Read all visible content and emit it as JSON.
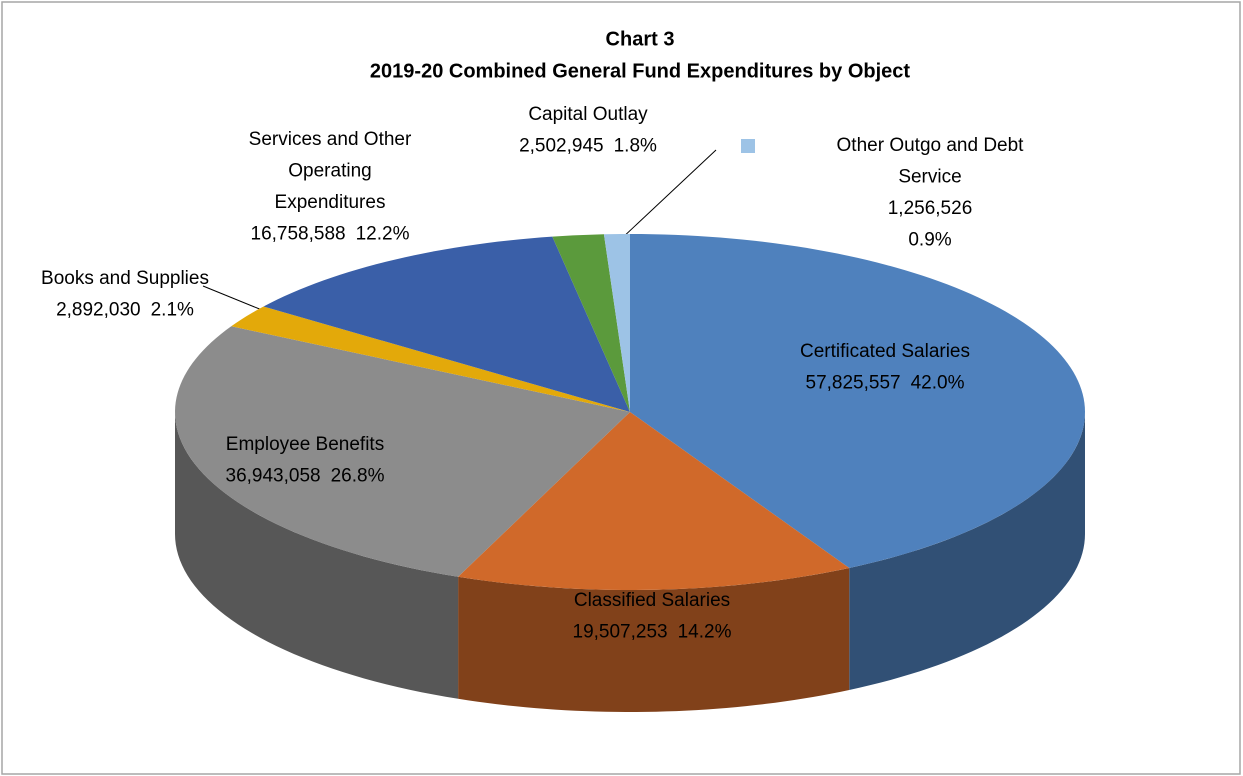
{
  "chart_data": {
    "type": "pie3d",
    "title": "Chart 3",
    "subtitle": "2019-20  Combined General Fund Expenditures by Object",
    "categories": [
      "Certificated Salaries",
      "Classified Salaries",
      "Employee Benefits",
      "Books and Supplies",
      "Services and Other Operating Expenditures",
      "Capital Outlay",
      "Other Outgo and Debt Service"
    ],
    "values": [
      57825557,
      19507253,
      36943058,
      2892030,
      16758588,
      2502945,
      1256526
    ],
    "value_labels": [
      "57,825,557",
      "19,507,253",
      "36,943,058",
      "2,892,030",
      "16,758,588",
      "2,502,945",
      "1,256,526"
    ],
    "percents": [
      42.0,
      14.2,
      26.8,
      2.1,
      12.2,
      1.8,
      0.9
    ],
    "percent_labels": [
      "42.0%",
      "14.2%",
      "26.8%",
      "2.1%",
      "12.2%",
      "1.8%",
      "0.9%"
    ],
    "colors": [
      "#4f81bd",
      "#d0692a",
      "#8c8c8c",
      "#e3a90a",
      "#3a5fa8",
      "#5b9a3c",
      "#9dc3e6"
    ]
  }
}
